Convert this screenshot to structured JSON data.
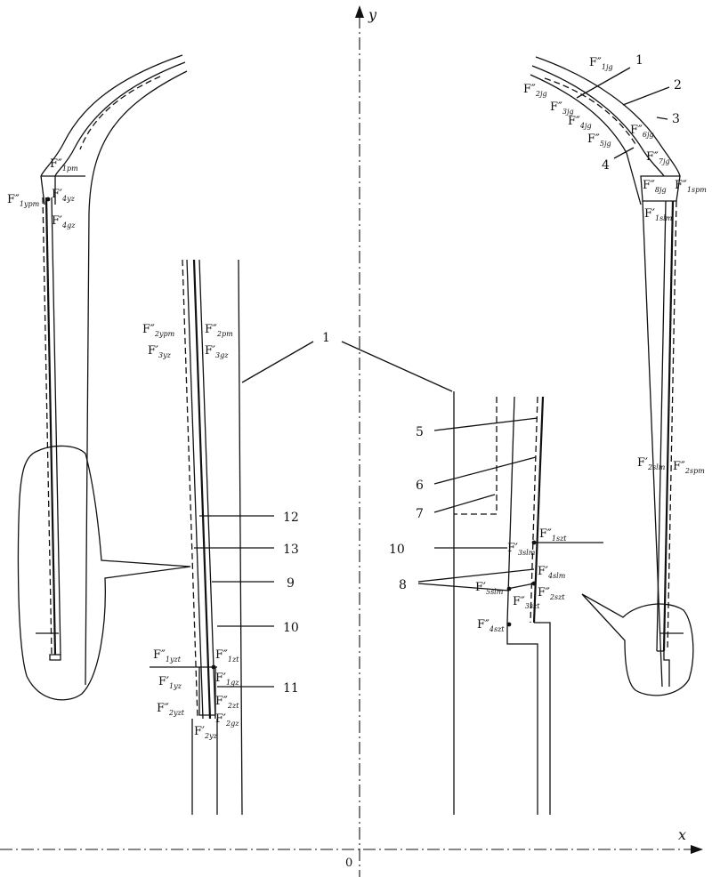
{
  "axes": {
    "x_label": "x",
    "y_label": "y",
    "origin_label": "0"
  },
  "callouts": [
    "1",
    "2",
    "3",
    "4",
    "5",
    "6",
    "7",
    "8",
    "9",
    "10",
    "11",
    "12",
    "13"
  ],
  "forces": {
    "top_left": [
      {
        "main": "F″",
        "sub": "1pm"
      },
      {
        "main": "F″",
        "sub": "1ypm"
      },
      {
        "main": "F′",
        "sub": "4yz"
      },
      {
        "main": "F′",
        "sub": "4gz"
      }
    ],
    "top_right": [
      {
        "main": "F″",
        "sub": "1jg"
      },
      {
        "main": "F″",
        "sub": "2jg"
      },
      {
        "main": "F″",
        "sub": "3jg"
      },
      {
        "main": "F″",
        "sub": "4jg"
      },
      {
        "main": "F″",
        "sub": "5jg"
      },
      {
        "main": "F″",
        "sub": "6jg"
      },
      {
        "main": "F″",
        "sub": "7jg"
      },
      {
        "main": "F″",
        "sub": "8jg"
      },
      {
        "main": "F″",
        "sub": "1spm"
      },
      {
        "main": "F′",
        "sub": "1slm"
      },
      {
        "main": "F′",
        "sub": "2slm"
      },
      {
        "main": "F″",
        "sub": "2spm"
      }
    ],
    "left_detail": [
      {
        "main": "F″",
        "sub": "2ypm"
      },
      {
        "main": "F″",
        "sub": "2pm"
      },
      {
        "main": "F′",
        "sub": "3yz"
      },
      {
        "main": "F′",
        "sub": "3gz"
      },
      {
        "main": "F″",
        "sub": "1yzt"
      },
      {
        "main": "F″",
        "sub": "1zt"
      },
      {
        "main": "F′",
        "sub": "1yz"
      },
      {
        "main": "F′",
        "sub": "1gz"
      },
      {
        "main": "F″",
        "sub": "2yzt"
      },
      {
        "main": "F″",
        "sub": "2zt"
      },
      {
        "main": "F′",
        "sub": "2gz"
      },
      {
        "main": "F′",
        "sub": "2yz"
      }
    ],
    "right_detail": [
      {
        "main": "F″",
        "sub": "1szt"
      },
      {
        "main": "F′",
        "sub": "3slm"
      },
      {
        "main": "F′",
        "sub": "4slm"
      },
      {
        "main": "F′",
        "sub": "5slm"
      },
      {
        "main": "F″",
        "sub": "2szt"
      },
      {
        "main": "F″",
        "sub": "3szt"
      },
      {
        "main": "F″",
        "sub": "4szt"
      }
    ]
  }
}
